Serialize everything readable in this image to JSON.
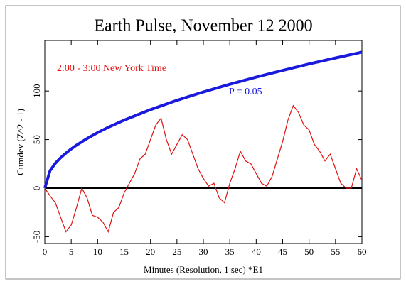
{
  "chart_data": {
    "type": "line",
    "title": "Earth Pulse, November 12 2000",
    "annotations": [
      "2:00 - 3:00 New York Time",
      "P = 0.05"
    ],
    "xlabel": "Minutes (Resolution, 1 sec)   *E1",
    "ylabel": "Cumdev (Z^2 - 1)",
    "xlim": [
      0,
      60
    ],
    "ylim": [
      -57,
      152
    ],
    "xticks": [
      0,
      5,
      10,
      15,
      20,
      25,
      30,
      35,
      40,
      45,
      50,
      55,
      60
    ],
    "yticks": [
      -50,
      0,
      50,
      100
    ],
    "series": [
      {
        "name": "P = 0.05",
        "color": "#1a1adc",
        "x": [
          0,
          1,
          2,
          3,
          4,
          5,
          6,
          8,
          10,
          12,
          15,
          20,
          25,
          30,
          35,
          40,
          45,
          50,
          55,
          60
        ],
        "values": [
          0,
          18.1,
          25.6,
          31.3,
          36.1,
          40.4,
          44.3,
          51.1,
          57.2,
          62.6,
          70,
          80.8,
          90.4,
          99,
          106.9,
          114.3,
          121.2,
          127.8,
          134,
          140
        ]
      },
      {
        "name": "Cumdev",
        "color": "#e01010",
        "x": [
          0,
          1,
          2,
          3,
          4,
          5,
          6,
          7,
          8,
          9,
          10,
          11,
          12,
          13,
          14,
          15,
          16,
          17,
          18,
          19,
          20,
          21,
          22,
          23,
          24,
          25,
          26,
          27,
          28,
          29,
          30,
          31,
          32,
          33,
          34,
          35,
          36,
          37,
          38,
          39,
          40,
          41,
          42,
          43,
          44,
          45,
          46,
          47,
          48,
          49,
          50,
          51,
          52,
          53,
          54,
          55,
          56,
          57,
          58,
          59,
          60
        ],
        "values": [
          0,
          -8,
          -15,
          -30,
          -45,
          -38,
          -20,
          0,
          -10,
          -28,
          -30,
          -35,
          -45,
          -25,
          -20,
          -5,
          5,
          15,
          30,
          35,
          50,
          65,
          72,
          50,
          35,
          45,
          55,
          50,
          35,
          20,
          10,
          2,
          5,
          -10,
          -15,
          5,
          20,
          38,
          28,
          25,
          15,
          5,
          2,
          12,
          30,
          48,
          70,
          85,
          78,
          65,
          60,
          45,
          38,
          28,
          35,
          20,
          5,
          0,
          0,
          20,
          8
        ]
      }
    ]
  }
}
